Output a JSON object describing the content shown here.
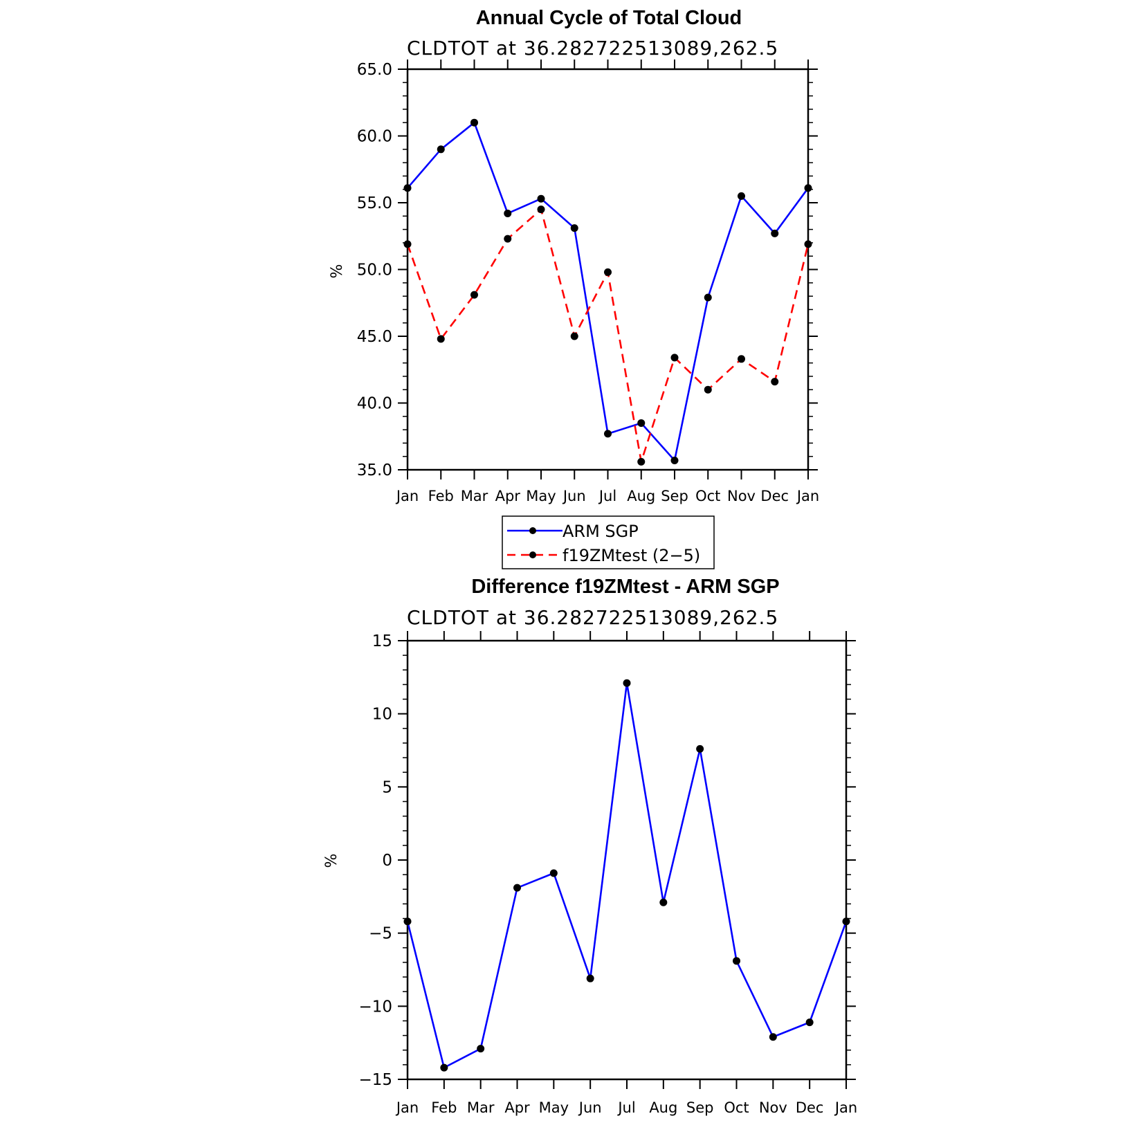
{
  "chart_data": [
    {
      "type": "line",
      "title": "Annual Cycle of Total Cloud",
      "subtitle": "CLDTOT at 36.282722513089,262.5",
      "xlabel": "",
      "ylabel": "%",
      "categories": [
        "Jan",
        "Feb",
        "Mar",
        "Apr",
        "May",
        "Jun",
        "Jul",
        "Aug",
        "Sep",
        "Oct",
        "Nov",
        "Dec",
        "Jan"
      ],
      "ylim": [
        35.0,
        65.0
      ],
      "yticks": [
        35.0,
        40.0,
        45.0,
        50.0,
        55.0,
        60.0,
        65.0
      ],
      "ytick_labels": [
        "35.0",
        "40.0",
        "45.0",
        "50.0",
        "55.0",
        "60.0",
        "65.0"
      ],
      "grid": false,
      "legend_position": "bottom-center",
      "series": [
        {
          "name": "ARM SGP",
          "color": "#0000ff",
          "dash": "solid",
          "values": [
            56.1,
            59.0,
            61.0,
            54.2,
            55.3,
            53.1,
            37.7,
            38.5,
            35.7,
            47.9,
            55.5,
            52.7,
            56.1
          ]
        },
        {
          "name": "f19ZMtest (2−5)",
          "color": "#ff0000",
          "dash": "dashed",
          "values": [
            51.9,
            44.8,
            48.1,
            52.3,
            54.5,
            45.0,
            49.8,
            35.6,
            43.4,
            41.0,
            43.3,
            41.6,
            51.9
          ]
        }
      ]
    },
    {
      "type": "line",
      "title": "Difference f19ZMtest - ARM SGP",
      "subtitle": "CLDTOT at 36.282722513089,262.5",
      "xlabel": "",
      "ylabel": "%",
      "categories": [
        "Jan",
        "Feb",
        "Mar",
        "Apr",
        "May",
        "Jun",
        "Jul",
        "Aug",
        "Sep",
        "Oct",
        "Nov",
        "Dec",
        "Jan"
      ],
      "ylim": [
        -15,
        15
      ],
      "yticks": [
        -15,
        -10,
        -5,
        0,
        5,
        10,
        15
      ],
      "ytick_labels": [
        "−15",
        "−10",
        "−5",
        "0",
        "5",
        "10",
        "15"
      ],
      "grid": false,
      "series": [
        {
          "name": "Difference",
          "color": "#0000ff",
          "dash": "solid",
          "values": [
            -4.2,
            -14.2,
            -12.9,
            -1.9,
            -0.9,
            -8.1,
            12.1,
            -2.9,
            7.6,
            -6.9,
            -12.1,
            -11.1,
            -4.2
          ]
        }
      ]
    }
  ]
}
